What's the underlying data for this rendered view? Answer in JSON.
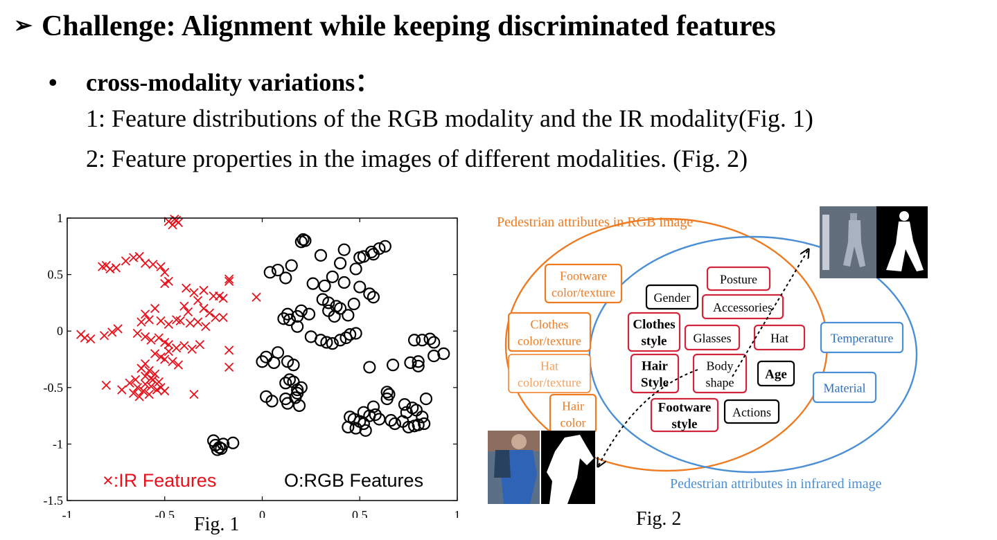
{
  "heading": {
    "marker": "➢",
    "text": "Challenge: Alignment while keeping discriminated features"
  },
  "bullet": {
    "marker": "•",
    "text": "cross-modality variations："
  },
  "points": [
    "1: Feature distributions of the RGB modality and the IR modality(Fig. 1)",
    "2: Feature properties in the images of different modalities. (Fig. 2)"
  ],
  "colors": {
    "ir": "#e8111b",
    "rgb": "#000000",
    "orange": "#ee7b22",
    "blue": "#4a8fd6",
    "red_box": "#d2253c"
  },
  "fig1": {
    "caption": "Fig. 1",
    "chart_data": {
      "type": "scatter",
      "xlim": [
        -1,
        1
      ],
      "ylim": [
        -1.5,
        1
      ],
      "xticks": [
        "-1",
        "-0.5",
        "0",
        "0.5",
        "1"
      ],
      "yticks": [
        "1",
        "0.5",
        "0",
        "-0.5",
        "-1",
        "-1.5"
      ],
      "series": [
        {
          "name": "×:IR Features",
          "marker": "x",
          "x": [
            -0.48,
            -0.45,
            -0.43,
            -0.46,
            -0.44,
            -0.82,
            -0.78,
            -0.75,
            -0.8,
            -0.7,
            -0.66,
            -0.63,
            -0.6,
            -0.56,
            -0.52,
            -0.5,
            -0.48,
            -0.5,
            -0.39,
            -0.35,
            -0.3,
            -0.25,
            -0.2,
            -0.17,
            -0.17,
            -0.03,
            -0.4,
            -0.38,
            -0.33,
            -0.22,
            -0.3,
            -0.27,
            -0.24,
            -0.55,
            -0.6,
            -0.58,
            -0.62,
            -0.52,
            -0.48,
            -0.44,
            -0.42,
            -0.37,
            -0.33,
            -0.29,
            -0.2,
            -0.93,
            -0.91,
            -0.88,
            -0.81,
            -0.77,
            -0.74,
            -0.64,
            -0.6,
            -0.57,
            -0.53,
            -0.5,
            -0.48,
            -0.44,
            -0.4,
            -0.36,
            -0.32,
            -0.17,
            -0.17,
            -0.55,
            -0.52,
            -0.5,
            -0.48,
            -0.46,
            -0.43,
            -0.58,
            -0.6,
            -0.62,
            -0.55,
            -0.57,
            -0.6,
            -0.65,
            -0.68,
            -0.8,
            -0.72,
            -0.64,
            -0.6,
            -0.56,
            -0.52,
            -0.61,
            -0.57,
            -0.53,
            -0.66,
            -0.63,
            -0.58,
            -0.54,
            -0.5,
            -0.35
          ],
          "y": [
            0.97,
            0.99,
            0.96,
            0.94,
            0.98,
            0.57,
            0.55,
            0.56,
            0.58,
            0.62,
            0.65,
            0.66,
            0.6,
            0.59,
            0.57,
            0.52,
            0.44,
            0.42,
            0.38,
            0.34,
            0.36,
            0.31,
            0.29,
            0.44,
            0.46,
            0.3,
            0.22,
            0.17,
            0.27,
            0.31,
            0.2,
            0.16,
            0.12,
            0.2,
            0.15,
            0.1,
            0.08,
            0.09,
            0.06,
            0.1,
            0.09,
            0.07,
            0.08,
            0.04,
            0.12,
            -0.03,
            -0.06,
            -0.07,
            -0.04,
            -0.01,
            0.02,
            -0.02,
            -0.05,
            -0.08,
            -0.06,
            -0.1,
            -0.12,
            -0.15,
            -0.13,
            -0.16,
            -0.12,
            -0.17,
            -0.32,
            -0.2,
            -0.23,
            -0.25,
            -0.18,
            -0.27,
            -0.3,
            -0.35,
            -0.29,
            -0.33,
            -0.38,
            -0.42,
            -0.4,
            -0.43,
            -0.46,
            -0.48,
            -0.52,
            -0.5,
            -0.47,
            -0.43,
            -0.5,
            -0.53,
            -0.49,
            -0.45,
            -0.55,
            -0.58,
            -0.56,
            -0.52,
            -0.53,
            -0.56
          ]
        },
        {
          "name": "O:RGB Features",
          "marker": "o",
          "x": [
            0.22,
            0.21,
            0.2,
            0.15,
            0.08,
            0.12,
            0.04,
            0.42,
            0.5,
            0.52,
            0.56,
            0.6,
            0.63,
            0.57,
            0.48,
            0.4,
            0.36,
            0.3,
            0.26,
            0.32,
            0.42,
            0.5,
            0.55,
            0.57,
            0.31,
            0.34,
            0.38,
            0.4,
            0.34,
            0.44,
            0.37,
            0.47,
            0.24,
            0.18,
            0.13,
            0.2,
            0.14,
            0.11,
            0.18,
            0.25,
            0.3,
            0.33,
            0.36,
            0.4,
            0.43,
            0.45,
            0.48,
            0.06,
            0.0,
            0.02,
            0.08,
            0.13,
            0.16,
            0.12,
            0.2,
            0.18,
            0.55,
            0.67,
            0.78,
            0.82,
            0.86,
            0.88,
            0.93,
            0.88,
            0.8,
            0.76,
            0.8,
            0.84,
            0.14,
            0.16,
            0.18,
            0.12,
            0.17,
            0.02,
            0.05,
            0.13,
            0.19,
            0.64,
            0.65,
            0.64,
            0.52,
            0.57,
            0.58,
            0.45,
            0.47,
            0.5,
            0.52,
            0.55,
            0.44,
            0.48,
            0.53,
            0.6,
            0.66,
            0.68,
            0.72,
            0.75,
            0.78,
            0.8,
            0.74,
            0.77,
            0.79,
            0.82,
            0.83,
            0.73,
            -0.25,
            -0.24,
            -0.22,
            -0.2,
            -0.15,
            -0.21,
            -0.23
          ],
          "y": [
            0.8,
            0.81,
            0.79,
            0.58,
            0.54,
            0.47,
            0.52,
            0.72,
            0.65,
            0.66,
            0.7,
            0.73,
            0.75,
            0.68,
            0.55,
            0.6,
            0.48,
            0.67,
            0.42,
            0.4,
            0.43,
            0.39,
            0.33,
            0.3,
            0.28,
            0.25,
            0.22,
            0.2,
            0.18,
            0.14,
            0.13,
            0.24,
            0.15,
            0.13,
            0.15,
            0.18,
            0.1,
            0.11,
            0.04,
            -0.05,
            -0.08,
            -0.1,
            -0.11,
            -0.08,
            -0.06,
            -0.03,
            -0.02,
            -0.28,
            -0.27,
            -0.23,
            -0.19,
            -0.27,
            -0.3,
            -0.46,
            -0.5,
            -0.55,
            -0.32,
            -0.3,
            -0.08,
            -0.08,
            -0.07,
            -0.1,
            -0.2,
            -0.22,
            -0.27,
            -0.28,
            -0.31,
            -0.6,
            -0.43,
            -0.45,
            -0.52,
            -0.6,
            -0.59,
            -0.58,
            -0.62,
            -0.64,
            -0.66,
            -0.54,
            -0.56,
            -0.6,
            -0.72,
            -0.67,
            -0.74,
            -0.76,
            -0.78,
            -0.8,
            -0.82,
            -0.75,
            -0.85,
            -0.86,
            -0.88,
            -0.78,
            -0.79,
            -0.82,
            -0.8,
            -0.85,
            -0.84,
            -0.83,
            -0.72,
            -0.68,
            -0.7,
            -0.76,
            -0.82,
            -0.65,
            -0.97,
            -1.01,
            -1.03,
            -1.0,
            -0.99,
            -1.04,
            -1.05
          ]
        }
      ]
    }
  },
  "fig2": {
    "caption": "Fig. 2",
    "rgb_set_label": "Pedestrian attributes in RGB image",
    "ir_set_label": "Pedestrian attributes in infrared image",
    "attributes": [
      {
        "lines": [
          "Footware",
          "color/texture"
        ],
        "group": "rgb-only",
        "bold": false
      },
      {
        "lines": [
          "Clothes",
          "color/texture"
        ],
        "group": "rgb-only",
        "bold": false
      },
      {
        "lines": [
          "Hat",
          "color/texture"
        ],
        "group": "rgb-only-faded",
        "bold": false
      },
      {
        "lines": [
          "Hair",
          "color"
        ],
        "group": "rgb-only",
        "bold": false
      },
      {
        "lines": [
          "Gender"
        ],
        "group": "shared-black",
        "bold": false
      },
      {
        "lines": [
          "Posture"
        ],
        "group": "shared-red",
        "bold": false
      },
      {
        "lines": [
          "Accessories"
        ],
        "group": "shared-red",
        "bold": false
      },
      {
        "lines": [
          "Clothes",
          "style"
        ],
        "group": "shared-red",
        "bold": true
      },
      {
        "lines": [
          "Glasses"
        ],
        "group": "shared-red",
        "bold": false
      },
      {
        "lines": [
          "Hat"
        ],
        "group": "shared-red",
        "bold": false
      },
      {
        "lines": [
          "Hair",
          "Style"
        ],
        "group": "shared-red",
        "bold": true
      },
      {
        "lines": [
          "Body",
          "shape"
        ],
        "group": "shared-red",
        "bold": false
      },
      {
        "lines": [
          "Age"
        ],
        "group": "shared-black",
        "bold": true
      },
      {
        "lines": [
          "Footware",
          "style"
        ],
        "group": "shared-red",
        "bold": true
      },
      {
        "lines": [
          "Actions"
        ],
        "group": "shared-black",
        "bold": false
      },
      {
        "lines": [
          "Temperature"
        ],
        "group": "ir-only",
        "bold": false
      },
      {
        "lines": [
          "Material"
        ],
        "group": "ir-only",
        "bold": false
      }
    ],
    "images": [
      {
        "label": "ir-pedestrian-photo"
      },
      {
        "label": "ir-pedestrian-mask"
      },
      {
        "label": "rgb-pedestrian-photo"
      },
      {
        "label": "rgb-pedestrian-mask"
      }
    ]
  }
}
